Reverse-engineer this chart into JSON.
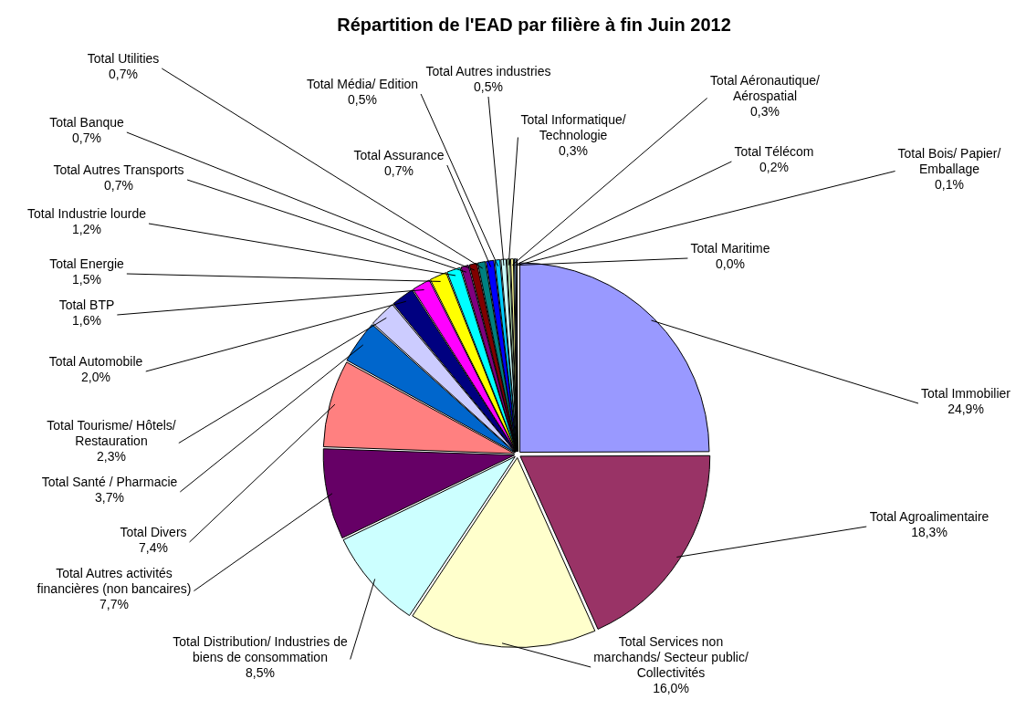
{
  "chart_data": {
    "type": "pie",
    "title": "Répartition de l'EAD par filière à fin Juin 2012",
    "categories": [
      "Total Immobilier",
      "Total Agroalimentaire",
      "Total Services non marchands/ Secteur public/ Collectivités",
      "Total Distribution/ Industries de biens de consommation",
      "Total Autres activités financières (non bancaires)",
      "Total Divers",
      "Total Santé / Pharmacie",
      "Total Tourisme/ Hôtels/ Restauration",
      "Total Automobile",
      "Total BTP",
      "Total Energie",
      "Total Industrie lourde",
      "Total Autres Transports",
      "Total Banque",
      "Total Utilities",
      "Total Assurance",
      "Total Média/ Edition",
      "Total Autres industries",
      "Total Informatique/ Technologie",
      "Total Aéronautique/ Aérospatial",
      "Total Télécom",
      "Total Bois/ Papier/ Emballage",
      "Total Maritime"
    ],
    "values": [
      24.9,
      18.3,
      16.0,
      8.5,
      7.7,
      7.4,
      3.7,
      2.3,
      2.0,
      1.6,
      1.5,
      1.2,
      0.7,
      0.7,
      0.7,
      0.7,
      0.5,
      0.5,
      0.3,
      0.3,
      0.2,
      0.1,
      0.0
    ],
    "value_labels": [
      "24,9%",
      "18,3%",
      "16,0%",
      "8,5%",
      "7,7%",
      "7,4%",
      "3,7%",
      "2,3%",
      "2,0%",
      "1,6%",
      "1,5%",
      "1,2%",
      "0,7%",
      "0,7%",
      "0,7%",
      "0,7%",
      "0,5%",
      "0,5%",
      "0,3%",
      "0,3%",
      "0,2%",
      "0,1%",
      "0,0%"
    ],
    "colors": [
      "#9999ff",
      "#993366",
      "#ffffcc",
      "#ccffff",
      "#660066",
      "#ff8080",
      "#0066cc",
      "#ccccff",
      "#000080",
      "#ff00ff",
      "#ffff00",
      "#00ffff",
      "#800080",
      "#800000",
      "#008080",
      "#0000ff",
      "#00ccff",
      "#ccffff",
      "#ccffcc",
      "#ffff99",
      "#99ccff",
      "#ff99cc",
      "#cc99ff"
    ]
  }
}
